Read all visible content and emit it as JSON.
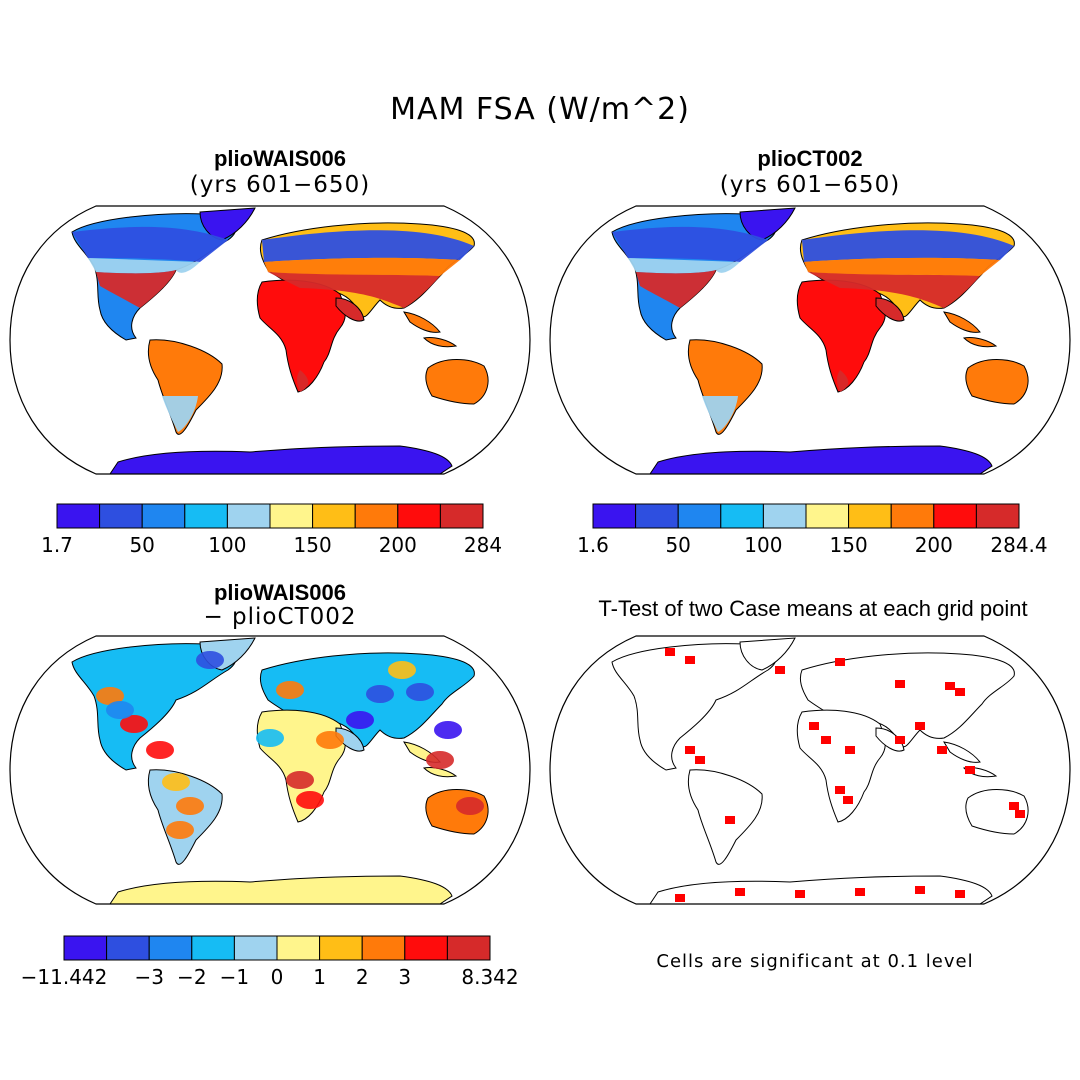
{
  "figure": {
    "title": "MAM FSA (W/m^2)",
    "significance_note": "Cells are significant at 0.1 level"
  },
  "colors": {
    "cool": [
      "#3a14f0",
      "#2e4fe0",
      "#1f86f0",
      "#16bcf4",
      "#9fd3ef"
    ],
    "warm": [
      "#fff58c",
      "#ffbe16",
      "#ff7a0a",
      "#ff0c0c",
      "#d62a2a"
    ],
    "ocean": "#ffffff",
    "significant": "#ff0000"
  },
  "chart_data": [
    {
      "type": "map",
      "panel": "top-left",
      "title": "plioWAIS006",
      "subtitle": "(yrs 601−650)",
      "colorbar": {
        "ticks": [
          "1.7",
          "50",
          "100",
          "150",
          "200",
          "284"
        ],
        "min": 1.7,
        "max": 284,
        "levels": 10
      }
    },
    {
      "type": "map",
      "panel": "top-right",
      "title": "plioCT002",
      "subtitle": "(yrs 601−650)",
      "colorbar": {
        "ticks": [
          "1.6",
          "50",
          "100",
          "150",
          "200",
          "284.4"
        ],
        "min": 1.6,
        "max": 284.4,
        "levels": 10
      }
    },
    {
      "type": "map",
      "panel": "bottom-left",
      "title": "plioWAIS006",
      "subtitle": "− plioCT002",
      "colorbar": {
        "ticks": [
          "−11.442",
          "−3",
          "−2",
          "−1",
          "0",
          "1",
          "2",
          "3",
          "8.342"
        ],
        "min": -11.442,
        "max": 8.342,
        "levels": 10
      }
    },
    {
      "type": "map",
      "panel": "bottom-right",
      "title": "T-Test of two Case means at each grid point"
    }
  ]
}
